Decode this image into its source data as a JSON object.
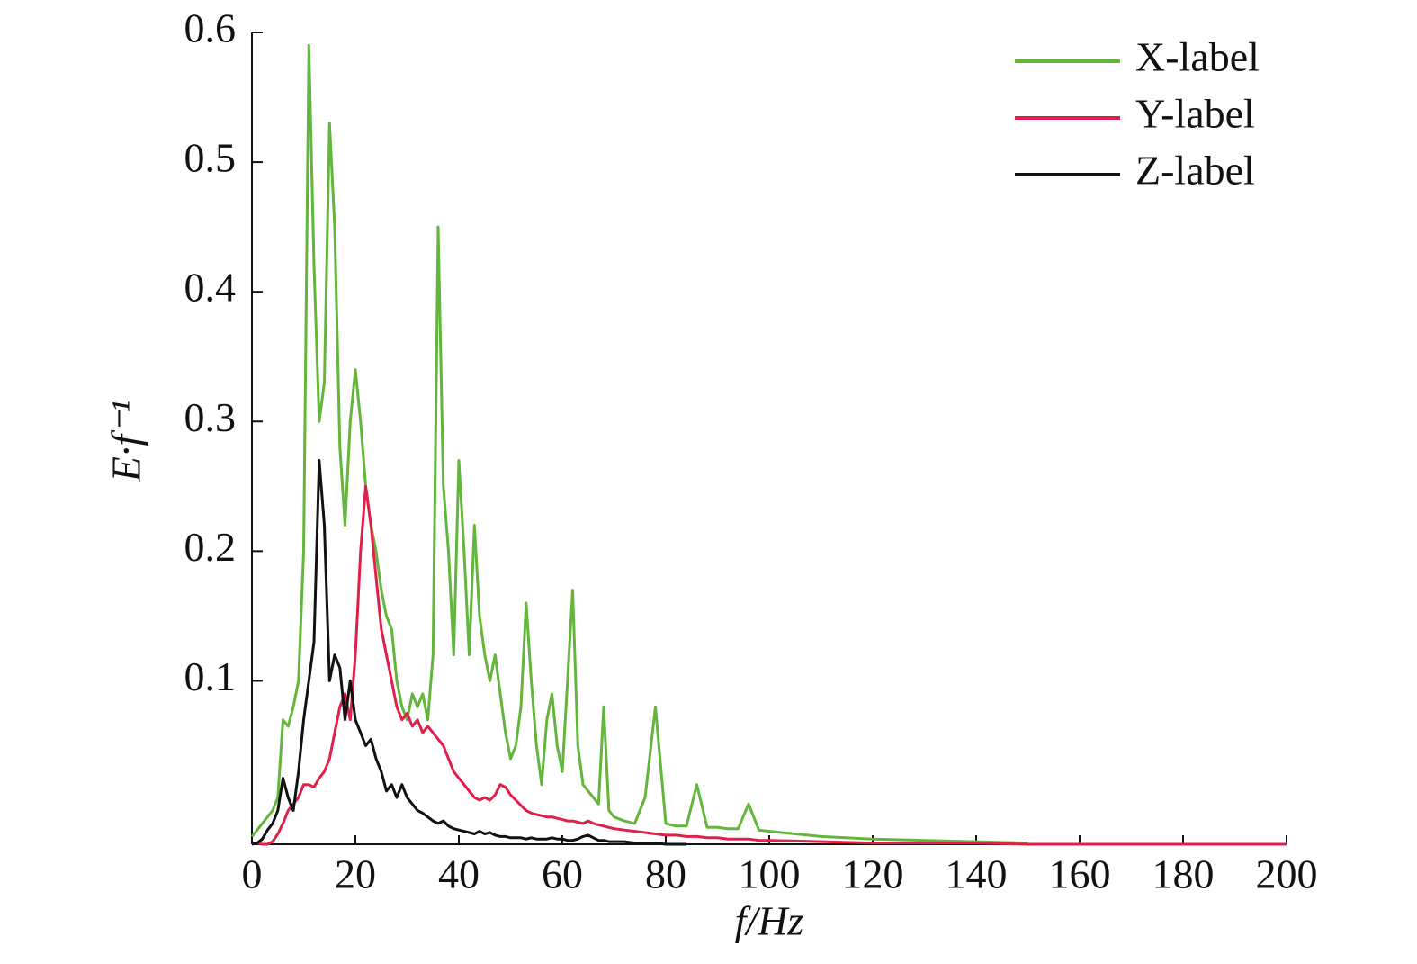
{
  "chart_data": {
    "type": "line",
    "x_label": "f/Hz",
    "y_label": "E·f⁻¹",
    "x": [
      0,
      1,
      2,
      3,
      4,
      5,
      6,
      7,
      8,
      9,
      10,
      11,
      12,
      13,
      14,
      15,
      16,
      17,
      18,
      19,
      20,
      21,
      22,
      23,
      24,
      25,
      26,
      27,
      28,
      29,
      30,
      31,
      32,
      33,
      34,
      35,
      36,
      37,
      38,
      39,
      40,
      41,
      42,
      43,
      44,
      45,
      46,
      47,
      48,
      49,
      50,
      51,
      52,
      53,
      54,
      55,
      56,
      57,
      58,
      59,
      60,
      61,
      62,
      63,
      64,
      65,
      66,
      67,
      68,
      69,
      70,
      72,
      74,
      76,
      78,
      80,
      82,
      84,
      86,
      88,
      90,
      92,
      94,
      96,
      98,
      100,
      110,
      120,
      130,
      140,
      150,
      160,
      170,
      180,
      190,
      200
    ],
    "series": [
      {
        "name": "X-label",
        "color": "#63b53c",
        "values": [
          -0.02,
          -0.015,
          -0.01,
          -0.005,
          0.0,
          0.01,
          0.07,
          0.065,
          0.08,
          0.1,
          0.2,
          0.59,
          0.42,
          0.3,
          0.33,
          0.53,
          0.45,
          0.28,
          0.22,
          0.3,
          0.34,
          0.3,
          0.25,
          0.22,
          0.2,
          0.17,
          0.15,
          0.14,
          0.1,
          0.08,
          0.07,
          0.09,
          0.08,
          0.09,
          0.07,
          0.12,
          0.45,
          0.25,
          0.2,
          0.12,
          0.27,
          0.2,
          0.12,
          0.22,
          0.15,
          0.12,
          0.1,
          0.12,
          0.09,
          0.06,
          0.04,
          0.05,
          0.08,
          0.16,
          0.1,
          0.05,
          0.02,
          0.07,
          0.09,
          0.05,
          0.03,
          0.1,
          0.17,
          0.05,
          0.02,
          0.015,
          0.01,
          0.005,
          0.08,
          0.0,
          -0.005,
          -0.008,
          -0.01,
          0.01,
          0.08,
          -0.01,
          -0.012,
          -0.012,
          0.02,
          -0.013,
          -0.013,
          -0.014,
          -0.014,
          0.005,
          -0.015,
          -0.016,
          -0.02,
          -0.022,
          -0.023,
          -0.024,
          -0.025,
          null,
          null,
          null,
          null,
          null
        ]
      },
      {
        "name": "Y-label",
        "color": "#e0204a",
        "values": [
          -0.025,
          -0.025,
          -0.026,
          -0.026,
          -0.024,
          -0.018,
          -0.01,
          0.0,
          0.005,
          0.01,
          0.02,
          0.02,
          0.018,
          0.025,
          0.03,
          0.04,
          0.06,
          0.08,
          0.09,
          0.07,
          0.12,
          0.2,
          0.25,
          0.22,
          0.18,
          0.14,
          0.12,
          0.1,
          0.08,
          0.07,
          0.075,
          0.065,
          0.07,
          0.06,
          0.065,
          0.06,
          0.055,
          0.05,
          0.04,
          0.03,
          0.025,
          0.02,
          0.015,
          0.01,
          0.008,
          0.01,
          0.008,
          0.012,
          0.02,
          0.018,
          0.012,
          0.008,
          0.004,
          0.0,
          -0.002,
          -0.003,
          -0.004,
          -0.005,
          -0.005,
          -0.006,
          -0.007,
          -0.008,
          -0.008,
          -0.009,
          -0.01,
          -0.008,
          -0.01,
          -0.011,
          -0.012,
          -0.013,
          -0.014,
          -0.015,
          -0.016,
          -0.017,
          -0.018,
          -0.019,
          -0.019,
          -0.02,
          -0.02,
          -0.021,
          -0.021,
          -0.022,
          -0.022,
          -0.022,
          -0.023,
          -0.023,
          -0.024,
          -0.025,
          -0.025,
          -0.025,
          -0.026,
          -0.026,
          -0.026,
          -0.026,
          -0.026,
          -0.026
        ]
      },
      {
        "name": "Z-label",
        "color": "#111111",
        "values": [
          -0.026,
          -0.025,
          -0.022,
          -0.015,
          -0.01,
          0.0,
          0.025,
          0.01,
          0.0,
          0.03,
          0.07,
          0.1,
          0.13,
          0.27,
          0.22,
          0.1,
          0.12,
          0.11,
          0.07,
          0.1,
          0.07,
          0.06,
          0.05,
          0.055,
          0.04,
          0.03,
          0.015,
          0.02,
          0.01,
          0.02,
          0.01,
          0.005,
          0.0,
          -0.002,
          -0.005,
          -0.008,
          -0.01,
          -0.008,
          -0.012,
          -0.014,
          -0.015,
          -0.016,
          -0.017,
          -0.018,
          -0.016,
          -0.018,
          -0.017,
          -0.019,
          -0.02,
          -0.02,
          -0.021,
          -0.021,
          -0.021,
          -0.022,
          -0.021,
          -0.022,
          -0.022,
          -0.022,
          -0.021,
          -0.022,
          -0.022,
          -0.023,
          -0.023,
          -0.022,
          -0.02,
          -0.019,
          -0.021,
          -0.023,
          -0.023,
          -0.024,
          -0.024,
          -0.024,
          -0.025,
          -0.025,
          -0.025,
          -0.026,
          -0.026,
          -0.026,
          null,
          null,
          null,
          null,
          null,
          null,
          null,
          null,
          null,
          null,
          null,
          null,
          null,
          null,
          null,
          null,
          null,
          null
        ]
      }
    ],
    "xlim": [
      0,
      200
    ],
    "xticks": [
      0,
      20,
      40,
      60,
      80,
      100,
      120,
      140,
      160,
      180,
      200
    ],
    "ylim": [
      -0.026,
      0.6
    ],
    "yticks": [
      0.1,
      0.2,
      0.3,
      0.4,
      0.5,
      0.6
    ],
    "legend": "upper right"
  }
}
